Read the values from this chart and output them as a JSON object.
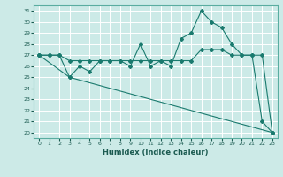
{
  "xlabel": "Humidex (Indice chaleur)",
  "bg_color": "#cceae7",
  "grid_color": "#ffffff",
  "line_color": "#1a7a6e",
  "xlim": [
    -0.5,
    23.5
  ],
  "ylim": [
    19.5,
    31.5
  ],
  "yticks": [
    20,
    21,
    22,
    23,
    24,
    25,
    26,
    27,
    28,
    29,
    30,
    31
  ],
  "xticks": [
    0,
    1,
    2,
    3,
    4,
    5,
    6,
    7,
    8,
    9,
    10,
    11,
    12,
    13,
    14,
    15,
    16,
    17,
    18,
    19,
    20,
    21,
    22,
    23
  ],
  "series1_x": [
    0,
    1,
    2,
    3,
    4,
    5,
    6,
    7,
    8,
    9,
    10,
    11,
    12,
    13,
    14,
    15,
    16,
    17,
    18,
    19,
    20,
    21,
    22,
    23
  ],
  "series1_y": [
    27,
    27,
    27,
    25,
    26,
    25.5,
    26.5,
    26.5,
    26.5,
    26,
    28,
    26,
    26.5,
    26,
    28.5,
    29,
    31,
    30,
    29.5,
    28,
    27,
    27,
    21,
    20
  ],
  "series2_x": [
    0,
    3,
    23
  ],
  "series2_y": [
    27,
    25,
    20
  ],
  "series3_x": [
    0,
    1,
    2,
    3,
    4,
    5,
    6,
    7,
    8,
    9,
    10,
    11,
    12,
    13,
    14,
    15,
    16,
    17,
    18,
    19,
    20,
    21,
    22,
    23
  ],
  "series3_y": [
    27,
    27,
    27,
    26.5,
    26.5,
    26.5,
    26.5,
    26.5,
    26.5,
    26.5,
    26.5,
    26.5,
    26.5,
    26.5,
    26.5,
    26.5,
    27.5,
    27.5,
    27.5,
    27,
    27,
    27,
    27,
    20
  ],
  "markersize": 2.0,
  "linewidth": 0.8
}
